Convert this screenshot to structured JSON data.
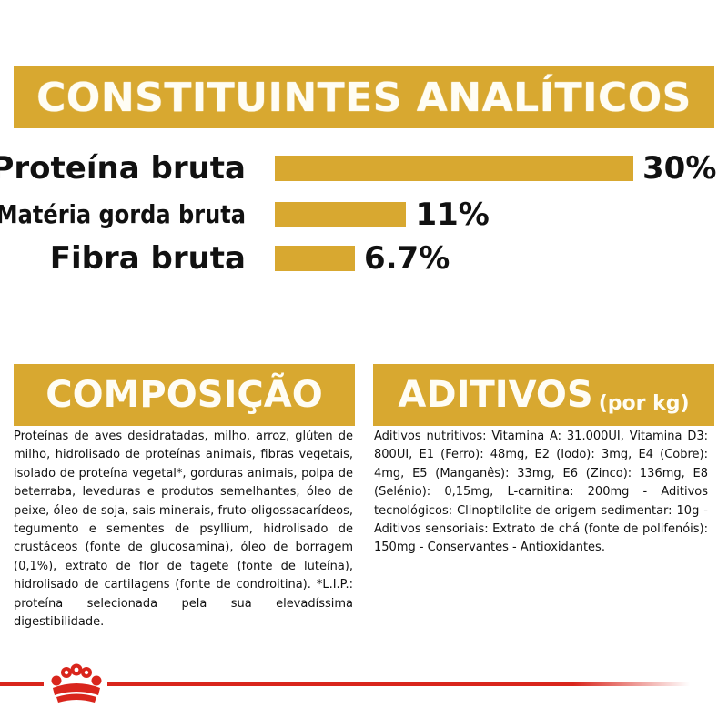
{
  "banner": {
    "title": "CONSTITUINTES ANALÍTICOS"
  },
  "chart_data": {
    "type": "bar",
    "orientation": "horizontal",
    "categories": [
      "Proteína bruta",
      "Matéria gorda bruta",
      "Fibra bruta"
    ],
    "values": [
      30,
      11,
      6.7
    ],
    "value_labels": [
      "30%",
      "11%",
      "6.7%"
    ],
    "xlim": [
      0,
      30
    ],
    "grid": false,
    "bar_color": "#d8a830"
  },
  "composicao": {
    "title": "COMPOSIÇÃO",
    "text": "Proteínas de aves desidratadas, milho, arroz, glúten de milho, hidrolisado de proteínas animais, fibras vegetais, isolado de proteína vegetal*, gorduras animais, polpa de beterraba, leveduras e produtos semelhantes, óleo de peixe, óleo de soja, sais minerais, fruto-oligossacarídeos, tegumento e sementes de psyllium, hidrolisado de crustáceos (fonte de glucosamina), óleo de borragem (0,1%), extrato de flor de tagete (fonte de luteína), hidrolisado de cartilagens (fonte de condroitina). *L.I.P.: proteína selecionada pela sua elevadíssima digestibilidade."
  },
  "aditivos": {
    "title": "ADITIVOS",
    "suffix": "(por kg)",
    "text": "Aditivos nutritivos: Vitamina A: 31.000UI, Vitamina D3: 800UI, E1 (Ferro): 48mg, E2 (Iodo): 3mg, E4 (Cobre): 4mg, E5 (Manganês): 33mg, E6 (Zinco): 136mg, E8 (Selénio): 0,15mg, L-carnitina: 200mg - Aditivos tecnológicos: Clinoptilolite de origem sedimentar: 10g - Aditivos sensoriais: Extrato de chá (fonte de polifenóis): 150mg - Conservantes - Antioxidantes."
  },
  "footer": {
    "logo_icon": "royal-canin-crown-icon",
    "line_color": "#d9251c"
  }
}
